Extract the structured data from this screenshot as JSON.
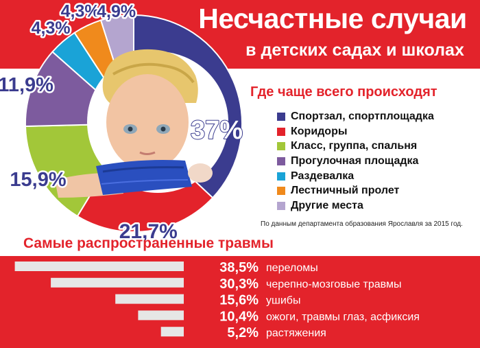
{
  "title_line1": "Несчастные случаи",
  "title_line2": "в детских садах и школах",
  "legend_title": "Где чаще всего происходят",
  "source": "По данным департамента образования Ярославля за 2015 год.",
  "injuries_title": "Самые распространенные травмы",
  "colors": {
    "red": "#e3232b",
    "white": "#ffffff",
    "bar": "#e6e6e6"
  },
  "photo": {
    "description_icon": "child-with-cast-photo"
  },
  "chart_data": [
    {
      "type": "pie",
      "title": "Где чаще всего происходят",
      "categories": [
        "Спортзал, спортплощадка",
        "Коридоры",
        "Класс, группа, спальня",
        "Прогулочная площадка",
        "Раздевалка",
        "Лестничный пролет",
        "Другие места"
      ],
      "values": [
        37,
        21.7,
        15.9,
        11.9,
        4.3,
        4.3,
        4.9
      ],
      "labels": [
        "37%",
        "21,7%",
        "15,9%",
        "11,9%",
        "4,3%",
        "4,3%",
        "4,9%"
      ],
      "colors": [
        "#3b3c8f",
        "#e3232b",
        "#a2c739",
        "#7d5b9e",
        "#1aa3d7",
        "#f08a1c",
        "#b4a5cf"
      ],
      "legend": "right"
    },
    {
      "type": "bar",
      "title": "Самые распространенные травмы",
      "categories": [
        "переломы",
        "черепно-мозговые травмы",
        "ушибы",
        "ожоги, травмы глаз, асфиксия",
        "растяжения"
      ],
      "values": [
        38.5,
        30.3,
        15.6,
        10.4,
        5.2
      ],
      "labels": [
        "38,5%",
        "30,3%",
        "15,6%",
        "10,4%",
        "5,2%"
      ]
    }
  ]
}
